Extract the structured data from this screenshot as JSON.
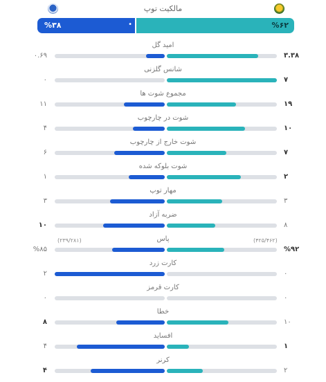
{
  "header": {
    "title": "مالکیت توپ"
  },
  "possession": {
    "left": "%۳۸",
    "right": "%۶۲",
    "left_fraction": 0.38,
    "right_fraction": 0.62
  },
  "stats": [
    {
      "label": "امید گل",
      "right": "۳.۳۸",
      "left": "۰.۶۹",
      "right_bold": true,
      "left_bold": false,
      "rf": 0.83,
      "lf": 0.17
    },
    {
      "label": "شانس گلزنی",
      "right": "۷",
      "left": "۰",
      "right_bold": true,
      "left_bold": false,
      "rf": 1.0,
      "lf": 0.0
    },
    {
      "label": "مجموع شوت ها",
      "right": "۱۹",
      "left": "۱۱",
      "right_bold": true,
      "left_bold": false,
      "rf": 0.63,
      "lf": 0.37
    },
    {
      "label": "شوت در چارچوب",
      "right": "۱۰",
      "left": "۴",
      "right_bold": true,
      "left_bold": false,
      "rf": 0.71,
      "lf": 0.29
    },
    {
      "label": "شوت خارج از چارچوب",
      "right": "۷",
      "left": "۶",
      "right_bold": true,
      "left_bold": false,
      "rf": 0.54,
      "lf": 0.46
    },
    {
      "label": "شوت بلوکه شده",
      "right": "۲",
      "left": "۱",
      "right_bold": true,
      "left_bold": false,
      "rf": 0.67,
      "lf": 0.33
    },
    {
      "label": "مهار توپ",
      "right": "۳",
      "left": "۳",
      "right_bold": false,
      "left_bold": false,
      "rf": 0.5,
      "lf": 0.5
    },
    {
      "label": "ضربه آزاد",
      "right": "۸",
      "left": "۱۰",
      "right_bold": false,
      "left_bold": true,
      "rf": 0.44,
      "lf": 0.56
    },
    {
      "label": "پاس",
      "right": "%۹۲",
      "left": "%۸۵",
      "right_bold": true,
      "left_bold": false,
      "rf": 0.52,
      "lf": 0.48,
      "right_sub": "(۴۲۵/۴۶۲)",
      "left_sub": "(۲۳۹/۲۸۱)"
    },
    {
      "label": "کارت زرد",
      "right": "۰",
      "left": "۲",
      "right_bold": false,
      "left_bold": false,
      "rf": 0.0,
      "lf": 1.0
    },
    {
      "label": "کارت قرمز",
      "right": "۰",
      "left": "۰",
      "right_bold": false,
      "left_bold": false,
      "rf": 0.0,
      "lf": 0.0
    },
    {
      "label": "خطا",
      "right": "۱۰",
      "left": "۸",
      "right_bold": false,
      "left_bold": true,
      "rf": 0.56,
      "lf": 0.44
    },
    {
      "label": "افساید",
      "right": "۱",
      "left": "۴",
      "right_bold": true,
      "left_bold": false,
      "rf": 0.2,
      "lf": 0.8
    },
    {
      "label": "کرنر",
      "right": "۲",
      "left": "۴",
      "right_bold": false,
      "left_bold": true,
      "rf": 0.33,
      "lf": 0.67
    }
  ],
  "colors": {
    "home": "#2ab3ba",
    "away": "#1c5bd3",
    "track": "#dde0e5"
  },
  "icons": {
    "right_team": "team-crest-icon",
    "left_team": "team-crest-icon"
  }
}
